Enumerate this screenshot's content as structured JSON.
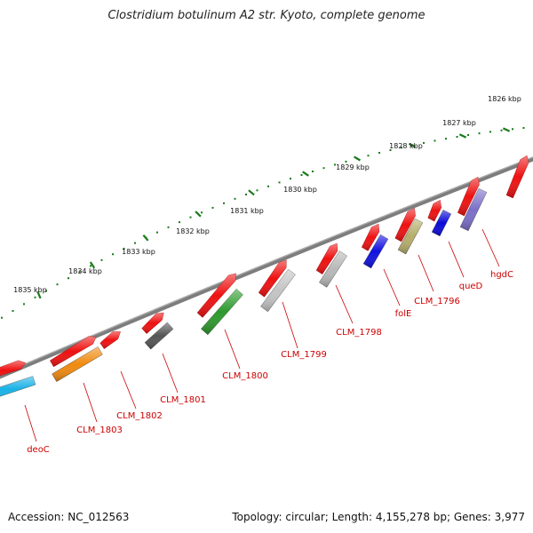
{
  "title": "Clostridium botulinum A2 str. Kyoto, complete genome",
  "footer": {
    "accession": "Accession: NC_012563",
    "summary": "Topology: circular; Length: 4,155,278 bp; Genes: 3,977"
  },
  "ticks": [
    {
      "label": "1826 kbp"
    },
    {
      "label": "1827 kbp"
    },
    {
      "label": "1828 kbp"
    },
    {
      "label": "1829 kbp"
    },
    {
      "label": "1830 kbp"
    },
    {
      "label": "1831 kbp"
    },
    {
      "label": "1832 kbp"
    },
    {
      "label": "1833 kbp"
    },
    {
      "label": "1834 kbp"
    },
    {
      "label": "1835 kbp"
    }
  ],
  "genes": [
    {
      "label": "hgdC",
      "color": "#7b6fc9"
    },
    {
      "label": "queD",
      "color": "#0a0ad8"
    },
    {
      "label": "CLM_1796",
      "color": "#b5ad6a"
    },
    {
      "label": "folE",
      "color": "#1010e0"
    },
    {
      "label": "CLM_1798",
      "color": "#b8b8b8"
    },
    {
      "label": "CLM_1799",
      "color": "#c4c4c4"
    },
    {
      "label": "CLM_1800",
      "color": "#2d9a2d"
    },
    {
      "label": "CLM_1801",
      "color": "#555555"
    },
    {
      "label": "CLM_1802",
      "color": "#ff0000"
    },
    {
      "label": "CLM_1803",
      "color": "#f08a10"
    },
    {
      "label": "deoC",
      "color": "#19b2e6"
    }
  ],
  "colors": {
    "forward_gene": "#ee1111",
    "backbone": "#7d7d7d",
    "ticks": "#1a7a1a",
    "label": "#cc0000"
  }
}
